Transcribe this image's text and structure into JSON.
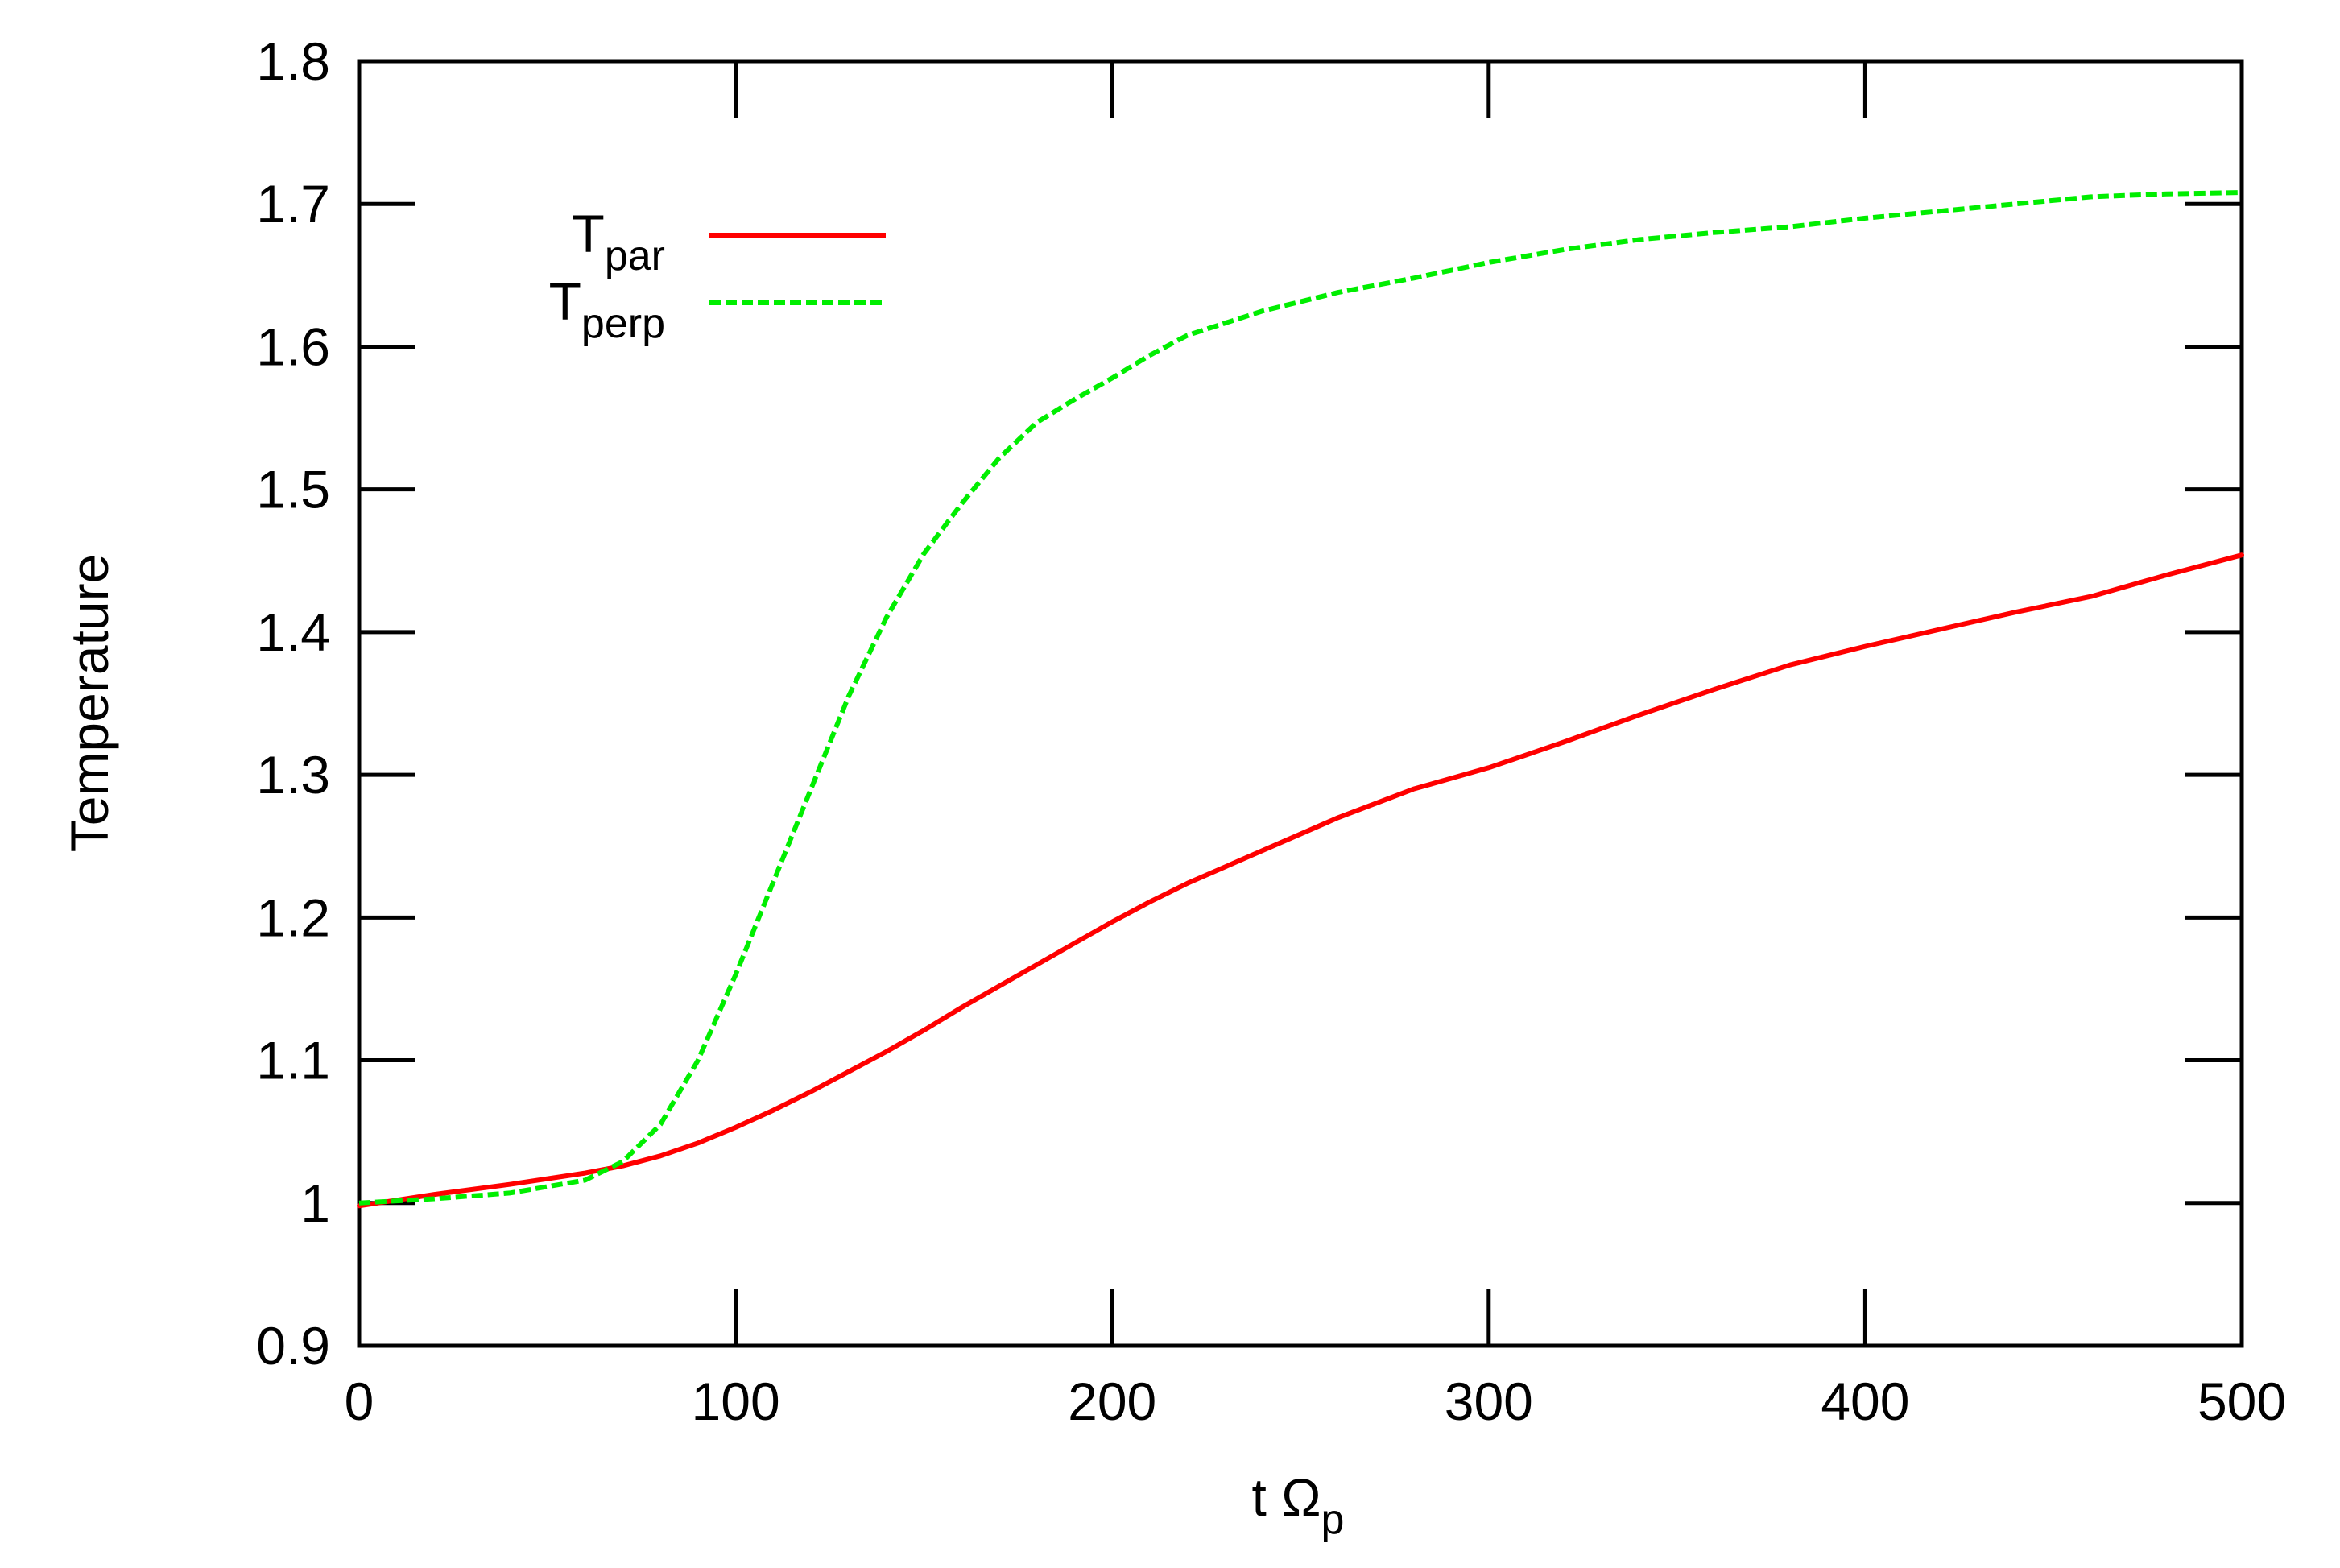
{
  "chart_data": {
    "type": "line",
    "title": "",
    "xlabel": "t Ω",
    "xlabel_subscript": "p",
    "ylabel": "Temperature",
    "xlim": [
      0,
      500
    ],
    "ylim": [
      0.9,
      1.8
    ],
    "xticks": [
      0,
      100,
      200,
      300,
      400,
      500
    ],
    "xtick_labels": [
      "0",
      "100",
      "200",
      "300",
      "400",
      "500"
    ],
    "yticks": [
      0.9,
      1.0,
      1.1,
      1.2,
      1.3,
      1.4,
      1.5,
      1.6,
      1.7,
      1.8
    ],
    "ytick_labels": [
      "0.9",
      "1",
      "1.1",
      "1.2",
      "1.3",
      "1.4",
      "1.5",
      "1.6",
      "1.7",
      "1.8"
    ],
    "grid": false,
    "legend_position": "top-left",
    "series": [
      {
        "name": "T",
        "name_subscript": "par",
        "color": "#ff0000",
        "style": "solid",
        "x": [
          0,
          20,
          40,
          60,
          70,
          80,
          90,
          100,
          110,
          120,
          130,
          140,
          150,
          160,
          170,
          180,
          190,
          200,
          210,
          220,
          240,
          260,
          280,
          300,
          320,
          340,
          360,
          380,
          400,
          420,
          440,
          460,
          480,
          500
        ],
        "y": [
          0.998,
          1.006,
          1.013,
          1.021,
          1.026,
          1.033,
          1.042,
          1.053,
          1.065,
          1.078,
          1.092,
          1.106,
          1.121,
          1.137,
          1.152,
          1.167,
          1.182,
          1.197,
          1.211,
          1.224,
          1.247,
          1.27,
          1.29,
          1.305,
          1.323,
          1.342,
          1.36,
          1.377,
          1.39,
          1.402,
          1.414,
          1.425,
          1.44,
          1.454
        ]
      },
      {
        "name": "T",
        "name_subscript": "perp",
        "color": "#00ee00",
        "style": "dashed",
        "x": [
          0,
          20,
          40,
          60,
          70,
          80,
          90,
          100,
          110,
          120,
          130,
          140,
          150,
          160,
          170,
          180,
          190,
          200,
          210,
          220,
          240,
          260,
          280,
          300,
          320,
          340,
          360,
          380,
          400,
          420,
          440,
          460,
          480,
          500
        ],
        "y": [
          1.0,
          1.003,
          1.007,
          1.016,
          1.029,
          1.055,
          1.1,
          1.16,
          1.225,
          1.29,
          1.355,
          1.41,
          1.455,
          1.49,
          1.522,
          1.547,
          1.563,
          1.578,
          1.594,
          1.608,
          1.625,
          1.638,
          1.648,
          1.659,
          1.668,
          1.675,
          1.68,
          1.684,
          1.69,
          1.695,
          1.7,
          1.705,
          1.707,
          1.708
        ]
      }
    ]
  }
}
